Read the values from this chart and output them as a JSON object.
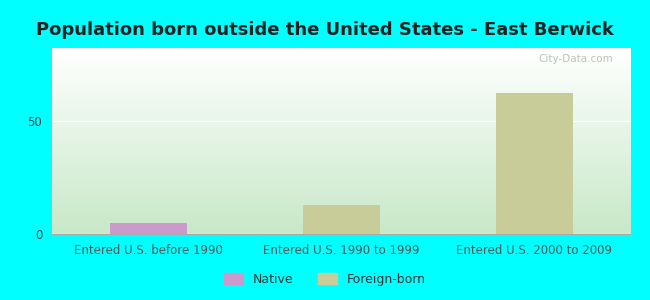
{
  "title": "Population born outside the United States - East Berwick",
  "categories": [
    "Entered U.S. before 1990",
    "Entered U.S. 1990 to 1999",
    "Entered U.S. 2000 to 2009"
  ],
  "native_values": [
    5,
    0,
    0
  ],
  "foreign_values": [
    0,
    13,
    62
  ],
  "native_color": "#cc99cc",
  "foreign_color": "#c8cc99",
  "bar_width": 0.4,
  "ylim": [
    0,
    82
  ],
  "yticks": [
    0,
    50
  ],
  "background_color": "#00ffff",
  "plot_bg_bottom": "#c8e8c8",
  "plot_bg_top": "#ffffff",
  "watermark": "City-Data.com",
  "title_fontsize": 13,
  "axis_label_fontsize": 8.5,
  "legend_fontsize": 9,
  "title_color": "#222222"
}
